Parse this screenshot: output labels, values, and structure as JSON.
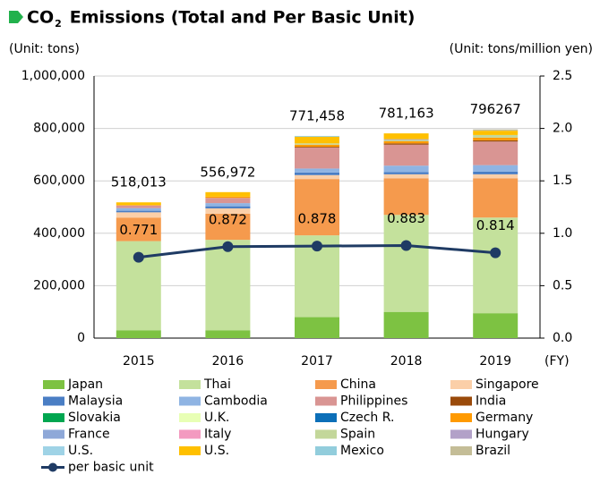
{
  "chart_data": {
    "type": "stacked_bar_line",
    "title": "CO",
    "title_subscript": "2",
    "title_rest": "Emissions (Total and Per Basic Unit)",
    "y_unit_label": "(Unit: tons)",
    "y2_unit_label": "(Unit: tons/million yen)",
    "x_unit_label": "(FY)",
    "categories": [
      "2015",
      "2016",
      "2017",
      "2018",
      "2019"
    ],
    "ylim": [
      0,
      1000000
    ],
    "yticks": [
      0,
      {
        "value": 200000,
        "label": "200,000"
      },
      {
        "value": 400000,
        "label": "400,000"
      },
      {
        "value": 600000,
        "label": "600,000"
      },
      {
        "value": 800000,
        "label": "800,000"
      },
      {
        "value": 1000000,
        "label": "1,000,000"
      }
    ],
    "y2lim": [
      0,
      2.5
    ],
    "y2ticks": [
      {
        "value": 0,
        "label": "0.0"
      },
      0.5,
      {
        "value": 1,
        "label": "1.0"
      },
      1.5,
      {
        "value": 2,
        "label": "2.0"
      },
      2.5
    ],
    "totals": [
      518013,
      556972,
      771458,
      781163,
      796267
    ],
    "total_labels": [
      "518,013",
      "556,972",
      "771,458",
      "781,163",
      "796267"
    ],
    "series": [
      {
        "name": "Japan",
        "color": "#7dc242",
        "values": [
          30000,
          30000,
          80000,
          100000,
          95000
        ]
      },
      {
        "name": "Thai",
        "color": "#c4e19c",
        "values": [
          340000,
          345000,
          312000,
          370000,
          365000
        ]
      },
      {
        "name": "China",
        "color": "#f59a4d",
        "values": [
          90000,
          100000,
          215000,
          140000,
          150000
        ]
      },
      {
        "name": "Singapore",
        "color": "#fbcfa8",
        "values": [
          20000,
          20000,
          15000,
          15000,
          15000
        ]
      },
      {
        "name": "Malaysia",
        "color": "#4a7ec4",
        "values": [
          6000,
          8000,
          10000,
          8000,
          10000
        ]
      },
      {
        "name": "Cambodia",
        "color": "#8fb4e3",
        "values": [
          10000,
          12000,
          15000,
          25000,
          25000
        ]
      },
      {
        "name": "Philippines",
        "color": "#d99593",
        "values": [
          10000,
          20000,
          80000,
          80000,
          90000
        ]
      },
      {
        "name": "India",
        "color": "#9a4a0a",
        "values": [
          0,
          0,
          3000,
          5000,
          5000
        ]
      },
      {
        "name": "Slovakia",
        "color": "#00a650",
        "values": [
          0,
          0,
          0,
          0,
          0
        ]
      },
      {
        "name": "U.K.",
        "color": "#e8ffb5",
        "values": [
          0,
          0,
          0,
          0,
          0
        ]
      },
      {
        "name": "Czech R.",
        "color": "#0c6fb8",
        "values": [
          0,
          0,
          0,
          0,
          0
        ]
      },
      {
        "name": "Germany",
        "color": "#ff9a00",
        "values": [
          2000,
          5000,
          8000,
          8000,
          10000
        ]
      },
      {
        "name": "France",
        "color": "#8ea8d8",
        "values": [
          0,
          0,
          0,
          0,
          0
        ]
      },
      {
        "name": "Italy",
        "color": "#f39ac0",
        "values": [
          0,
          0,
          0,
          0,
          0
        ]
      },
      {
        "name": "Spain",
        "color": "#c3d79a",
        "values": [
          0,
          0,
          5000,
          5000,
          10000
        ]
      },
      {
        "name": "Hungary",
        "color": "#b2a1c8",
        "values": [
          0,
          0,
          0,
          3000,
          0
        ]
      },
      {
        "name": "U.S.",
        "color": "#9fd3e6",
        "values": [
          0,
          0,
          0,
          0,
          0
        ]
      },
      {
        "name": "U.S.",
        "color": "#ffc000",
        "values": [
          10013,
          16972,
          25458,
          22163,
          16267
        ]
      },
      {
        "name": "Mexico",
        "color": "#92cddc",
        "values": [
          0,
          0,
          3000,
          0,
          0
        ]
      },
      {
        "name": "Brazil",
        "color": "#c4bd97",
        "values": [
          0,
          0,
          0,
          0,
          5000
        ]
      }
    ],
    "line_series": {
      "name": "per basic unit",
      "color": "#1f3b64",
      "axis": "y2",
      "values": [
        0.771,
        0.872,
        0.878,
        0.883,
        0.814
      ]
    }
  }
}
